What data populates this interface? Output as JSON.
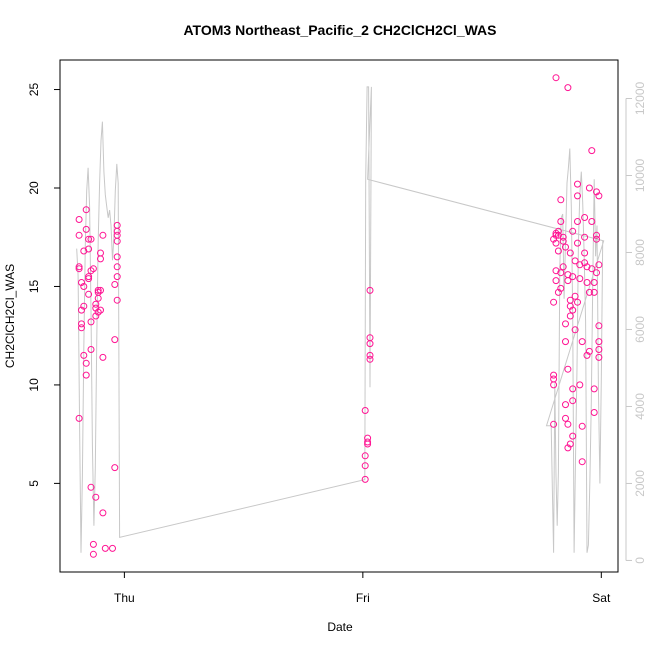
{
  "chart_data": {
    "type": "scatter",
    "title": "ATOM3 Northeast_Pacific_2 CH2ClCH2Cl_WAS",
    "xlabel": "Date",
    "ylabel": "CH2ClCH2Cl_WAS",
    "x_ticks": [
      {
        "label": "Thu",
        "value": 1.0
      },
      {
        "label": "Fri",
        "value": 2.0
      },
      {
        "label": "Sat",
        "value": 3.0
      }
    ],
    "xlim": [
      0.73,
      3.07
    ],
    "ylim": [
      0.5,
      26.5
    ],
    "y_ticks": [
      5,
      10,
      15,
      20,
      25
    ],
    "y2lim": [
      -300,
      13000
    ],
    "y2_ticks": [
      0,
      2000,
      4000,
      6000,
      8000,
      10000,
      12000
    ],
    "colors": {
      "points": "#ff1493",
      "line": "#c8c8c8",
      "frame": "#000000",
      "right_axis": "#c8c8c8"
    },
    "series": [
      {
        "type": "scatter",
        "points": [
          [
            0.81,
            8.3
          ],
          [
            0.81,
            17.6
          ],
          [
            0.81,
            18.4
          ],
          [
            0.81,
            16.0
          ],
          [
            0.81,
            15.9
          ],
          [
            0.82,
            15.2
          ],
          [
            0.82,
            13.8
          ],
          [
            0.82,
            13.1
          ],
          [
            0.82,
            12.9
          ],
          [
            0.83,
            16.8
          ],
          [
            0.83,
            15.0
          ],
          [
            0.83,
            14.0
          ],
          [
            0.83,
            11.5
          ],
          [
            0.84,
            11.1
          ],
          [
            0.84,
            10.5
          ],
          [
            0.84,
            17.9
          ],
          [
            0.84,
            18.9
          ],
          [
            0.85,
            17.4
          ],
          [
            0.85,
            16.9
          ],
          [
            0.85,
            15.5
          ],
          [
            0.85,
            15.4
          ],
          [
            0.85,
            14.6
          ],
          [
            0.86,
            15.8
          ],
          [
            0.86,
            17.4
          ],
          [
            0.86,
            13.2
          ],
          [
            0.86,
            11.8
          ],
          [
            0.86,
            4.8
          ],
          [
            0.87,
            1.9
          ],
          [
            0.87,
            1.4
          ],
          [
            0.87,
            15.9
          ],
          [
            0.88,
            14.1
          ],
          [
            0.88,
            13.9
          ],
          [
            0.88,
            13.5
          ],
          [
            0.88,
            4.3
          ],
          [
            0.89,
            14.8
          ],
          [
            0.89,
            14.7
          ],
          [
            0.89,
            14.4
          ],
          [
            0.89,
            13.7
          ],
          [
            0.9,
            13.8
          ],
          [
            0.9,
            14.8
          ],
          [
            0.9,
            16.4
          ],
          [
            0.9,
            16.7
          ],
          [
            0.91,
            17.6
          ],
          [
            0.91,
            11.4
          ],
          [
            0.91,
            3.5
          ],
          [
            0.92,
            1.7
          ],
          [
            0.95,
            1.7
          ],
          [
            0.96,
            5.8
          ],
          [
            0.96,
            12.3
          ],
          [
            0.96,
            15.1
          ],
          [
            0.97,
            18.1
          ],
          [
            0.97,
            17.8
          ],
          [
            0.97,
            17.3
          ],
          [
            0.97,
            17.6
          ],
          [
            0.97,
            16.5
          ],
          [
            0.97,
            15.5
          ],
          [
            0.97,
            14.3
          ],
          [
            0.97,
            16.0
          ],
          [
            2.01,
            5.2
          ],
          [
            2.01,
            5.9
          ],
          [
            2.01,
            6.4
          ],
          [
            2.01,
            8.7
          ],
          [
            2.02,
            7.0
          ],
          [
            2.02,
            7.1
          ],
          [
            2.02,
            7.3
          ],
          [
            2.03,
            11.5
          ],
          [
            2.03,
            11.3
          ],
          [
            2.03,
            12.1
          ],
          [
            2.03,
            12.4
          ],
          [
            2.03,
            14.8
          ],
          [
            2.8,
            10.5
          ],
          [
            2.8,
            10.3
          ],
          [
            2.8,
            10.0
          ],
          [
            2.8,
            8.0
          ],
          [
            2.8,
            14.2
          ],
          [
            2.8,
            17.4
          ],
          [
            2.81,
            17.6
          ],
          [
            2.81,
            17.7
          ],
          [
            2.81,
            15.8
          ],
          [
            2.81,
            15.3
          ],
          [
            2.81,
            17.2
          ],
          [
            2.82,
            16.8
          ],
          [
            2.82,
            14.7
          ],
          [
            2.82,
            17.6
          ],
          [
            2.82,
            17.8
          ],
          [
            2.83,
            19.4
          ],
          [
            2.83,
            18.3
          ],
          [
            2.83,
            14.9
          ],
          [
            2.83,
            15.7
          ],
          [
            2.84,
            17.3
          ],
          [
            2.84,
            17.5
          ],
          [
            2.84,
            16.0
          ],
          [
            2.85,
            12.2
          ],
          [
            2.85,
            13.1
          ],
          [
            2.85,
            9.0
          ],
          [
            2.85,
            8.3
          ],
          [
            2.85,
            17.0
          ],
          [
            2.86,
            15.6
          ],
          [
            2.86,
            15.3
          ],
          [
            2.86,
            8.0
          ],
          [
            2.86,
            6.8
          ],
          [
            2.86,
            10.8
          ],
          [
            2.87,
            14.0
          ],
          [
            2.87,
            14.3
          ],
          [
            2.87,
            13.5
          ],
          [
            2.87,
            16.7
          ],
          [
            2.87,
            7.0
          ],
          [
            2.88,
            7.4
          ],
          [
            2.88,
            9.2
          ],
          [
            2.88,
            9.8
          ],
          [
            2.88,
            17.8
          ],
          [
            2.88,
            15.5
          ],
          [
            2.88,
            13.8
          ],
          [
            2.89,
            16.3
          ],
          [
            2.89,
            12.8
          ],
          [
            2.89,
            14.5
          ],
          [
            2.9,
            14.2
          ],
          [
            2.9,
            18.3
          ],
          [
            2.9,
            19.6
          ],
          [
            2.9,
            20.2
          ],
          [
            2.9,
            17.2
          ],
          [
            2.91,
            16.1
          ],
          [
            2.91,
            15.4
          ],
          [
            2.91,
            10.0
          ],
          [
            2.92,
            12.2
          ],
          [
            2.92,
            6.1
          ],
          [
            2.92,
            7.9
          ],
          [
            2.93,
            16.7
          ],
          [
            2.93,
            18.5
          ],
          [
            2.93,
            17.5
          ],
          [
            2.93,
            16.2
          ],
          [
            2.94,
            11.5
          ],
          [
            2.94,
            16.0
          ],
          [
            2.94,
            15.2
          ],
          [
            2.95,
            14.7
          ],
          [
            2.95,
            11.7
          ],
          [
            2.95,
            20.0
          ],
          [
            2.96,
            21.9
          ],
          [
            2.96,
            18.3
          ],
          [
            2.96,
            15.9
          ],
          [
            2.97,
            15.2
          ],
          [
            2.97,
            8.6
          ],
          [
            2.97,
            9.8
          ],
          [
            2.97,
            14.7
          ],
          [
            2.98,
            19.8
          ],
          [
            2.98,
            17.4
          ],
          [
            2.98,
            17.6
          ],
          [
            2.98,
            15.7
          ],
          [
            2.99,
            13.0
          ],
          [
            2.99,
            11.8
          ],
          [
            2.99,
            12.2
          ],
          [
            2.99,
            11.4
          ],
          [
            2.99,
            16.1
          ],
          [
            2.99,
            19.6
          ],
          [
            2.81,
            25.6
          ],
          [
            2.86,
            25.1
          ]
        ]
      },
      {
        "type": "line",
        "axis": "right",
        "points": [
          [
            0.8,
            8100
          ],
          [
            0.806,
            7400
          ],
          [
            0.812,
            3500
          ],
          [
            0.818,
            200
          ],
          [
            0.824,
            2200
          ],
          [
            0.83,
            5500
          ],
          [
            0.836,
            8200
          ],
          [
            0.842,
            9600
          ],
          [
            0.848,
            10200
          ],
          [
            0.854,
            9200
          ],
          [
            0.86,
            6500
          ],
          [
            0.866,
            3000
          ],
          [
            0.872,
            900
          ],
          [
            0.878,
            2400
          ],
          [
            0.884,
            5600
          ],
          [
            0.89,
            8300
          ],
          [
            0.896,
            9800
          ],
          [
            0.902,
            10900
          ],
          [
            0.908,
            11400
          ],
          [
            0.914,
            10100
          ],
          [
            0.92,
            9500
          ],
          [
            0.926,
            9200
          ],
          [
            0.932,
            8900
          ],
          [
            0.938,
            9100
          ],
          [
            0.944,
            8700
          ],
          [
            0.95,
            7800
          ],
          [
            0.956,
            8400
          ],
          [
            0.962,
            9600
          ],
          [
            0.968,
            10300
          ],
          [
            0.974,
            9800
          ],
          [
            0.98,
            600
          ],
          [
            2.008,
            2100
          ],
          [
            2.012,
            9900
          ],
          [
            2.018,
            12300
          ],
          [
            2.024,
            12300
          ],
          [
            2.03,
            4500
          ],
          [
            2.036,
            12300
          ],
          [
            2.02,
            9900
          ],
          [
            3.01,
            8300
          ],
          [
            2.77,
            3500
          ],
          [
            2.79,
            3500
          ],
          [
            2.795,
            1800
          ],
          [
            2.8,
            200
          ],
          [
            2.805,
            4600
          ],
          [
            2.81,
            2200
          ],
          [
            2.815,
            900
          ],
          [
            2.82,
            2300
          ],
          [
            2.826,
            7600
          ],
          [
            2.832,
            8900
          ],
          [
            2.838,
            9000
          ],
          [
            2.844,
            6800
          ],
          [
            2.85,
            8300
          ],
          [
            2.856,
            9800
          ],
          [
            2.862,
            10200
          ],
          [
            2.868,
            10700
          ],
          [
            2.874,
            9200
          ],
          [
            2.88,
            6400
          ],
          [
            2.886,
            200
          ],
          [
            2.892,
            2800
          ],
          [
            2.898,
            5000
          ],
          [
            2.904,
            8200
          ],
          [
            2.91,
            9500
          ],
          [
            2.916,
            10100
          ],
          [
            2.922,
            9300
          ],
          [
            2.928,
            8000
          ],
          [
            2.934,
            6200
          ],
          [
            2.94,
            200
          ],
          [
            2.946,
            400
          ],
          [
            2.952,
            2100
          ],
          [
            2.958,
            4100
          ],
          [
            2.964,
            7100
          ],
          [
            2.97,
            9900
          ],
          [
            2.976,
            7900
          ],
          [
            2.982,
            8700
          ],
          [
            2.988,
            4500
          ],
          [
            2.994,
            2000
          ],
          [
            3.0,
            4700
          ],
          [
            3.006,
            8300
          ],
          [
            3.01,
            8300
          ]
        ]
      }
    ],
    "grid": false,
    "legend": "none"
  }
}
